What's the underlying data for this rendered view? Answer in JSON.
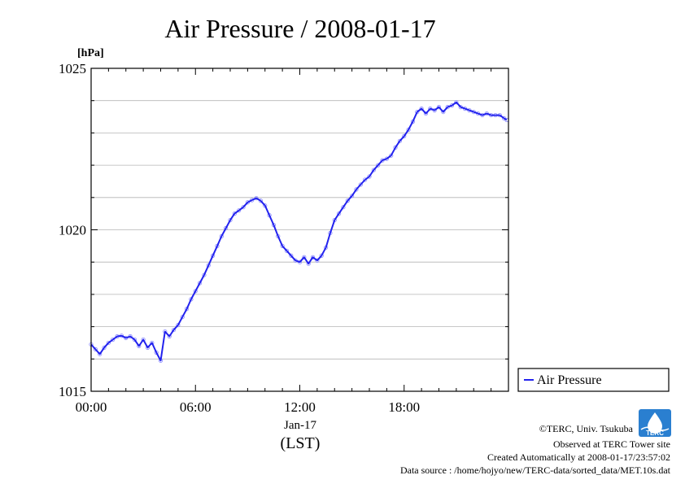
{
  "chart_data": {
    "type": "line",
    "title": "Air Pressure / 2008-01-17",
    "ylabel": "[hPa]",
    "xlabel": "(LST)",
    "x_date_label": "Jan-17",
    "x_range_hours": [
      0,
      24
    ],
    "ylim": [
      1015,
      1025
    ],
    "y_ticks": [
      "1015",
      "1020",
      "1025"
    ],
    "x_ticks": [
      "00:00",
      "06:00",
      "12:00",
      "18:00"
    ],
    "grid": "horizontal, every 1 hPa",
    "legend_position": "right-bottom outside plot",
    "series": [
      {
        "name": "Air Pressure",
        "color": "#2222ee",
        "marker_color": "#8888ff",
        "x": [
          0.0,
          0.25,
          0.5,
          0.75,
          1.0,
          1.25,
          1.5,
          1.75,
          2.0,
          2.25,
          2.5,
          2.75,
          3.0,
          3.25,
          3.5,
          3.75,
          4.0,
          4.25,
          4.5,
          4.75,
          5.0,
          5.25,
          5.5,
          5.75,
          6.0,
          6.25,
          6.5,
          6.75,
          7.0,
          7.25,
          7.5,
          7.75,
          8.0,
          8.25,
          8.5,
          8.75,
          9.0,
          9.25,
          9.5,
          9.75,
          10.0,
          10.25,
          10.5,
          10.75,
          11.0,
          11.25,
          11.5,
          11.75,
          12.0,
          12.25,
          12.5,
          12.75,
          13.0,
          13.25,
          13.5,
          13.75,
          14.0,
          14.25,
          14.5,
          14.75,
          15.0,
          15.25,
          15.5,
          15.75,
          16.0,
          16.25,
          16.5,
          16.75,
          17.0,
          17.25,
          17.5,
          17.75,
          18.0,
          18.25,
          18.5,
          18.75,
          19.0,
          19.25,
          19.5,
          19.75,
          20.0,
          20.25,
          20.5,
          20.75,
          21.0,
          21.25,
          21.5,
          21.75,
          22.0,
          22.25,
          22.5,
          22.75,
          23.0,
          23.25,
          23.5,
          23.75,
          23.9
        ],
        "values": [
          1016.45,
          1016.3,
          1016.15,
          1016.35,
          1016.5,
          1016.6,
          1016.7,
          1016.72,
          1016.65,
          1016.7,
          1016.6,
          1016.4,
          1016.6,
          1016.35,
          1016.5,
          1016.2,
          1015.95,
          1016.85,
          1016.7,
          1016.9,
          1017.05,
          1017.3,
          1017.55,
          1017.85,
          1018.1,
          1018.35,
          1018.6,
          1018.9,
          1019.2,
          1019.5,
          1019.8,
          1020.05,
          1020.3,
          1020.5,
          1020.6,
          1020.7,
          1020.85,
          1020.92,
          1020.98,
          1020.9,
          1020.75,
          1020.45,
          1020.15,
          1019.8,
          1019.5,
          1019.35,
          1019.2,
          1019.05,
          1019.0,
          1019.15,
          1018.95,
          1019.15,
          1019.05,
          1019.2,
          1019.45,
          1019.9,
          1020.3,
          1020.5,
          1020.7,
          1020.9,
          1021.05,
          1021.25,
          1021.4,
          1021.55,
          1021.65,
          1021.85,
          1022.0,
          1022.15,
          1022.2,
          1022.3,
          1022.55,
          1022.75,
          1022.9,
          1023.1,
          1023.35,
          1023.65,
          1023.75,
          1023.6,
          1023.75,
          1023.7,
          1023.8,
          1023.65,
          1023.8,
          1023.85,
          1023.95,
          1023.8,
          1023.75,
          1023.7,
          1023.65,
          1023.6,
          1023.55,
          1023.6,
          1023.55,
          1023.55,
          1023.55,
          1023.45,
          1023.4
        ]
      }
    ]
  },
  "credits": {
    "copyright": "©TERC, Univ. Tsukuba",
    "observed": "Observed at TERC Tower site",
    "created": "Created Automatically at 2008-01-17/23:57:02",
    "source": "Data source : /home/hojyo/new/TERC-data/sorted_data/MET.10s.dat"
  },
  "logo": {
    "text": "TERC",
    "color": "#2a7fd0"
  }
}
